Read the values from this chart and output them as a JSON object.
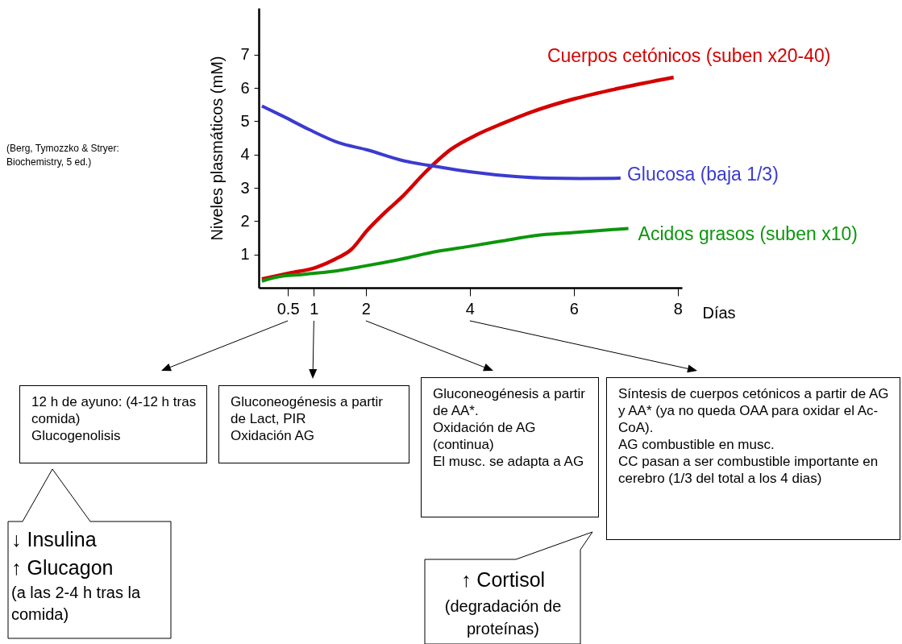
{
  "chart_data": {
    "type": "line",
    "xlabel": "Días",
    "ylabel": "Niveles plasmáticos (mM)",
    "xlim": [
      -0.06,
      8.08
    ],
    "ylim": [
      0,
      8.4
    ],
    "xticks": [
      0.5,
      1,
      2,
      4,
      6,
      8
    ],
    "yticks": [
      1,
      2,
      3,
      4,
      5,
      6,
      7
    ],
    "grid": false,
    "marker": "none",
    "line_style": "solid",
    "series": [
      {
        "name": "Cuerpos cetónicos (suben x20-40)",
        "color": "#d40000",
        "x": [
          0,
          0.54,
          1.04,
          1.41,
          1.72,
          2.03,
          2.34,
          2.71,
          3.15,
          3.64,
          4.14,
          4.64,
          5.19,
          6.0,
          6.93,
          7.92
        ],
        "values": [
          0.26,
          0.44,
          0.61,
          0.86,
          1.15,
          1.73,
          2.22,
          2.75,
          3.48,
          4.16,
          4.6,
          4.94,
          5.28,
          5.67,
          6.01,
          6.32
        ]
      },
      {
        "name": "Glucosa (baja 1/3)",
        "color": "#3b3bd0",
        "x": [
          0,
          0.42,
          0.91,
          1.47,
          2.03,
          2.71,
          3.4,
          4.02,
          4.88,
          5.5,
          6.12,
          6.9
        ],
        "values": [
          5.46,
          5.14,
          4.75,
          4.36,
          4.14,
          3.82,
          3.63,
          3.48,
          3.34,
          3.29,
          3.28,
          3.29
        ]
      },
      {
        "name": "Acidos grasos (suben x10)",
        "color": "#0c960c",
        "x": [
          0,
          0.29,
          0.79,
          1.35,
          1.97,
          2.59,
          3.4,
          4.02,
          4.64,
          5.26,
          6.0,
          7.05
        ],
        "values": [
          0.2,
          0.32,
          0.4,
          0.49,
          0.65,
          0.83,
          1.1,
          1.25,
          1.41,
          1.57,
          1.66,
          1.78
        ]
      }
    ],
    "annotations": [
      "(Berg, Tymozzko & Stryer: Biochemistry, 5 ed.)",
      "12 h de ayuno: (4-12 h tras comida)\nGlucogenolisis",
      "Gluconeogénesis a partir de Lact, PIR\nOxidación AG",
      "Gluconeogénesis a partir de AA*.\nOxidación de AG (continua)\nEl musc. se adapta a AG",
      "Síntesis de cuerpos cetónicos a partir de AG y AA* (ya no queda OAA para oxidar el Ac-CoA).\nAG combustible en musc.\nCC pasan a ser combustible importante en cerebro (1/3 del total a los 4 dias)",
      "↓ Insulina\n↑ Glucagon",
      "(a las 2-4 h tras la comida)",
      "↑ Cortisol",
      "(degradación de proteínas)"
    ]
  }
}
